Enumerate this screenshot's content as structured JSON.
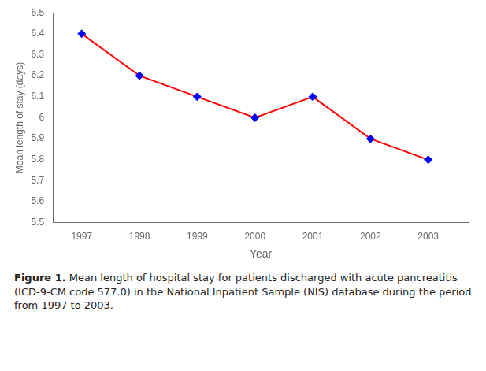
{
  "chart_data": {
    "type": "line",
    "x": [
      1997,
      1998,
      1999,
      2000,
      2001,
      2002,
      2003
    ],
    "series": [
      {
        "values": [
          6.4,
          6.2,
          6.1,
          6.0,
          6.1,
          5.9,
          5.8
        ],
        "color": "#FF0000",
        "colors": [
          "#0000FF",
          "#0000FF",
          "#0000FF",
          "#0000FF",
          "#0000FF",
          "#0000FF",
          "#0000FF"
        ],
        "marker": "diamond",
        "line_style": "solid"
      }
    ],
    "xlabel": "Year",
    "ylabel": "Mean length of stay (days)",
    "caption": "Figure 1. Mean length of hospital stay for patients discharged with acute pancreatitis (ICD-9-CM code 577.0) in the National Inpatient Sample (NIS) database during the period from 1997 to 2003.",
    "xlim": [
      1996.5,
      2003.7
    ],
    "xticks": [
      1997,
      1998,
      1999,
      2000,
      2001,
      2002,
      2003
    ],
    "ylim": [
      5.5,
      6.5
    ],
    "yticks": [
      5.5,
      5.6,
      5.7,
      5.8,
      5.9,
      6.0,
      6.1,
      6.2,
      6.3,
      6.4,
      6.5
    ],
    "grid": false
  }
}
